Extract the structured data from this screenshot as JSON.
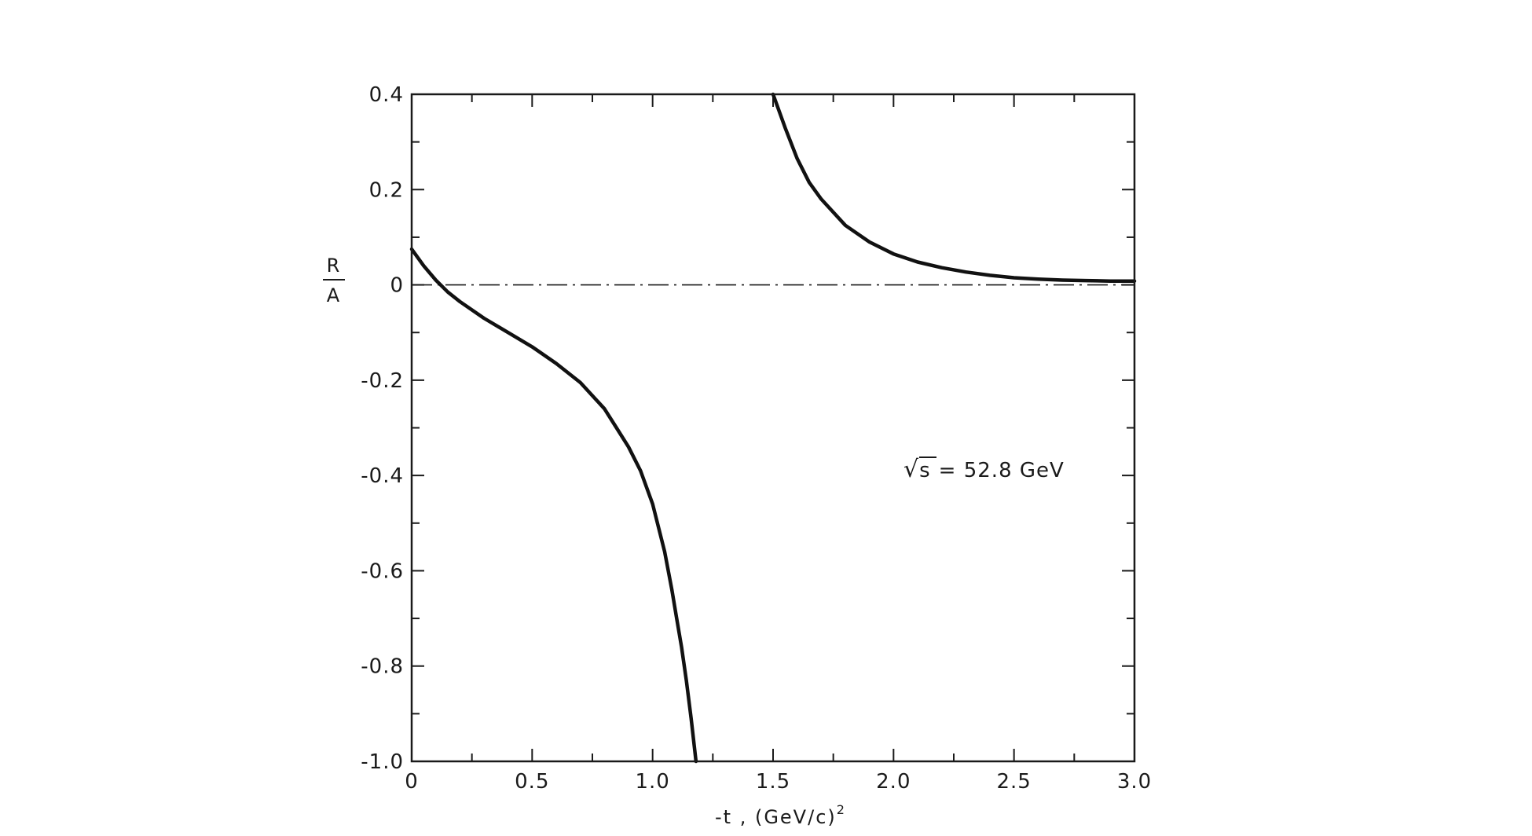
{
  "chart_data": {
    "type": "line",
    "title": "",
    "xlabel": "-t , (GeV/c)",
    "xlabel_superscript": "2",
    "ylabel_numerator": "R",
    "ylabel_denominator": "A",
    "xlim": [
      0,
      3.0
    ],
    "ylim": [
      -1.0,
      0.4
    ],
    "x_ticks": [
      "0",
      "0.5",
      "1.0",
      "1.5",
      "2.0",
      "2.5",
      "3.0"
    ],
    "x_tick_values": [
      0,
      0.5,
      1.0,
      1.5,
      2.0,
      2.5,
      3.0
    ],
    "y_ticks": [
      "0.4",
      "0.2",
      "0",
      "-0.2",
      "-0.4",
      "-0.6",
      "-0.8",
      "-1.0"
    ],
    "y_tick_values": [
      0.4,
      0.2,
      0,
      -0.2,
      -0.4,
      -0.6,
      -0.8,
      -1.0
    ],
    "grid": false,
    "annotation": {
      "sqrt_symbol": "√",
      "radicand": "s",
      "text": "= 52.8 GeV"
    },
    "reference_line": {
      "y": 0,
      "style": "dash-dot"
    },
    "series": [
      {
        "x": [
          0,
          0.05,
          0.1,
          0.15,
          0.2,
          0.3,
          0.4,
          0.5,
          0.6,
          0.7,
          0.8,
          0.85,
          0.9,
          0.95,
          1.0,
          1.05,
          1.08,
          1.1,
          1.12,
          1.14,
          1.16,
          1.18
        ],
        "y": [
          0.075,
          0.04,
          0.01,
          -0.015,
          -0.035,
          -0.07,
          -0.1,
          -0.13,
          -0.165,
          -0.205,
          -0.26,
          -0.3,
          -0.34,
          -0.39,
          -0.46,
          -0.56,
          -0.64,
          -0.7,
          -0.76,
          -0.83,
          -0.91,
          -1.0
        ]
      },
      {
        "x": [
          1.5,
          1.55,
          1.6,
          1.65,
          1.7,
          1.8,
          1.9,
          2.0,
          2.1,
          2.2,
          2.3,
          2.4,
          2.5,
          2.6,
          2.7,
          2.8,
          2.9,
          3.0
        ],
        "y": [
          0.4,
          0.33,
          0.265,
          0.215,
          0.18,
          0.125,
          0.09,
          0.065,
          0.048,
          0.036,
          0.027,
          0.02,
          0.015,
          0.012,
          0.01,
          0.009,
          0.008,
          0.008
        ]
      }
    ]
  }
}
